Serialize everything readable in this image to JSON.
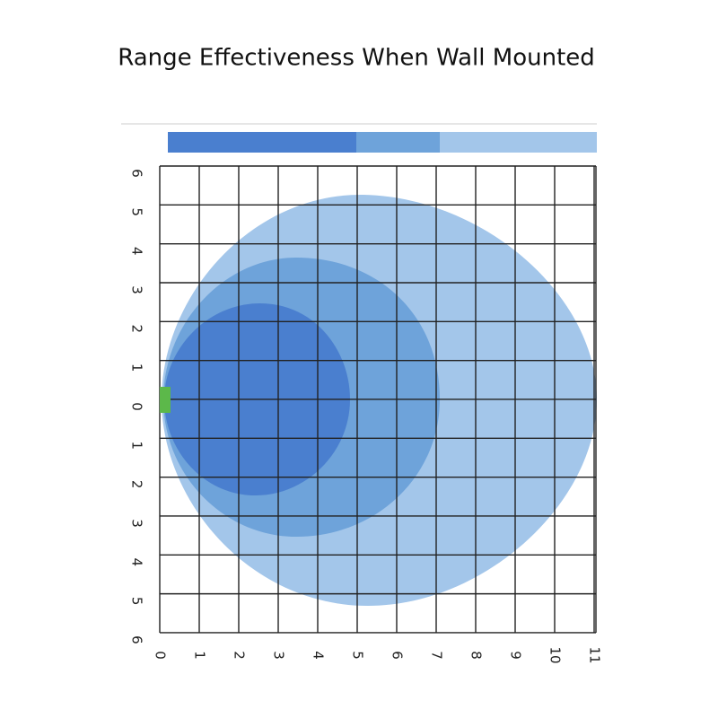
{
  "title": "Range Effectiveness When Wall Mounted",
  "x_labels": [
    0,
    1,
    2,
    3,
    4,
    5,
    6,
    7,
    8,
    9,
    10,
    11
  ],
  "y_labels": [
    6,
    5,
    4,
    3,
    2,
    1,
    0,
    1,
    2,
    3,
    4,
    5,
    6
  ]
}
